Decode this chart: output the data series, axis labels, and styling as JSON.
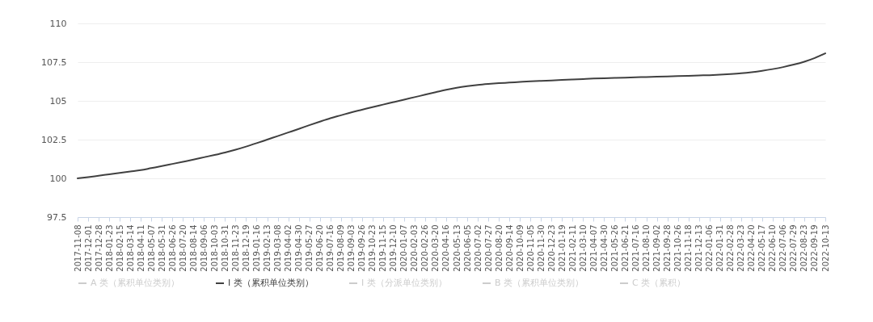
{
  "chart_data": {
    "type": "line",
    "categories": [
      "2017-11-08",
      "2017-12-01",
      "2017-12-28",
      "2018-01-23",
      "2018-02-15",
      "2018-03-14",
      "2018-04-11",
      "2018-05-07",
      "2018-05-31",
      "2018-06-26",
      "2018-07-20",
      "2018-08-14",
      "2018-09-06",
      "2018-10-03",
      "2018-10-31",
      "2018-11-23",
      "2018-12-19",
      "2019-01-16",
      "2019-02-13",
      "2019-03-08",
      "2019-04-02",
      "2019-04-30",
      "2019-05-27",
      "2019-06-20",
      "2019-07-16",
      "2019-08-09",
      "2019-09-03",
      "2019-09-26",
      "2019-10-23",
      "2019-11-15",
      "2019-12-10",
      "2020-01-07",
      "2020-02-03",
      "2020-02-26",
      "2020-03-20",
      "2020-04-16",
      "2020-05-13",
      "2020-06-05",
      "2020-07-02",
      "2020-07-27",
      "2020-08-20",
      "2020-09-14",
      "2020-10-09",
      "2020-11-05",
      "2020-11-30",
      "2020-12-23",
      "2021-01-19",
      "2021-02-11",
      "2021-03-10",
      "2021-04-07",
      "2021-04-30",
      "2021-05-26",
      "2021-06-21",
      "2021-07-16",
      "2021-08-10",
      "2021-09-02",
      "2021-09-28",
      "2021-10-26",
      "2021-11-18",
      "2021-12-13",
      "2022-01-06",
      "2022-01-31",
      "2022-02-28",
      "2022-03-23",
      "2022-04-20",
      "2022-05-17",
      "2022-06-10",
      "2022-07-06",
      "2022-07-29",
      "2022-08-23",
      "2022-09-19",
      "2022-10-13"
    ],
    "series": [
      {
        "name": "A 类（累积单位类别）",
        "color": "#cccccc",
        "values": [
          null,
          null,
          null,
          null,
          null,
          null,
          null,
          null,
          null,
          null,
          null,
          null,
          null,
          null,
          null,
          null,
          null,
          null,
          null,
          null,
          null,
          null,
          null,
          null,
          null,
          null,
          null,
          null,
          null,
          null,
          null,
          null,
          null,
          null,
          null,
          null,
          null,
          null,
          null,
          null,
          null,
          null,
          null,
          null,
          null,
          null,
          null,
          null,
          null,
          null,
          null,
          null,
          null,
          null,
          null,
          null,
          null,
          null,
          null,
          null,
          null,
          null,
          null,
          null,
          null,
          null,
          null,
          null,
          null,
          null,
          null,
          null
        ]
      },
      {
        "name": "I 类（累积单位类别）",
        "color": "#404040",
        "values": [
          100.0,
          100.08,
          100.17,
          100.26,
          100.35,
          100.44,
          100.53,
          100.66,
          100.79,
          100.93,
          101.07,
          101.21,
          101.36,
          101.51,
          101.67,
          101.85,
          102.05,
          102.27,
          102.5,
          102.73,
          102.96,
          103.19,
          103.43,
          103.66,
          103.88,
          104.07,
          104.26,
          104.43,
          104.6,
          104.76,
          104.92,
          105.08,
          105.24,
          105.4,
          105.56,
          105.72,
          105.85,
          105.95,
          106.03,
          106.09,
          106.14,
          106.18,
          106.22,
          106.26,
          106.29,
          106.32,
          106.35,
          106.38,
          106.41,
          106.44,
          106.46,
          106.48,
          106.5,
          106.52,
          106.54,
          106.56,
          106.58,
          106.6,
          106.62,
          106.64,
          106.66,
          106.69,
          106.73,
          106.78,
          106.85,
          106.94,
          107.05,
          107.18,
          107.34,
          107.53,
          107.77,
          108.07
        ]
      },
      {
        "name": "I 类（分派单位类别）",
        "color": "#cccccc",
        "values": [
          null,
          null,
          null,
          null,
          null,
          null,
          null,
          null,
          null,
          null,
          null,
          null,
          null,
          null,
          null,
          null,
          null,
          null,
          null,
          null,
          null,
          null,
          null,
          null,
          null,
          null,
          null,
          null,
          null,
          null,
          null,
          null,
          null,
          null,
          null,
          null,
          null,
          null,
          null,
          null,
          null,
          null,
          null,
          null,
          null,
          null,
          null,
          null,
          null,
          null,
          null,
          null,
          null,
          null,
          null,
          null,
          null,
          null,
          null,
          null,
          null,
          null,
          null,
          null,
          null,
          null,
          null,
          null,
          null,
          null,
          null,
          null
        ]
      },
      {
        "name": "B 类（累积单位类别）",
        "color": "#cccccc",
        "values": [
          null,
          null,
          null,
          null,
          null,
          null,
          null,
          null,
          null,
          null,
          null,
          null,
          null,
          null,
          null,
          null,
          null,
          null,
          null,
          null,
          null,
          null,
          null,
          null,
          null,
          null,
          null,
          null,
          null,
          null,
          null,
          null,
          null,
          null,
          null,
          null,
          null,
          null,
          null,
          null,
          null,
          null,
          null,
          null,
          null,
          null,
          null,
          null,
          null,
          null,
          null,
          null,
          null,
          null,
          null,
          null,
          null,
          null,
          null,
          null,
          null,
          null,
          null,
          null,
          null,
          null,
          null,
          null,
          null,
          null,
          null,
          null
        ]
      },
      {
        "name": "C 类（累积）",
        "color": "#cccccc",
        "values": [
          null,
          null,
          null,
          null,
          null,
          null,
          null,
          null,
          null,
          null,
          null,
          null,
          null,
          null,
          null,
          null,
          null,
          null,
          null,
          null,
          null,
          null,
          null,
          null,
          null,
          null,
          null,
          null,
          null,
          null,
          null,
          null,
          null,
          null,
          null,
          null,
          null,
          null,
          null,
          null,
          null,
          null,
          null,
          null,
          null,
          null,
          null,
          null,
          null,
          null,
          null,
          null,
          null,
          null,
          null,
          null,
          null,
          null,
          null,
          null,
          null,
          null,
          null,
          null,
          null,
          null,
          null,
          null,
          null,
          null,
          null,
          null
        ]
      }
    ],
    "ylim": [
      97.5,
      110
    ],
    "yticks": [
      97.5,
      100,
      102.5,
      105,
      107.5,
      110
    ],
    "grid": "y",
    "legend": "bottom"
  }
}
